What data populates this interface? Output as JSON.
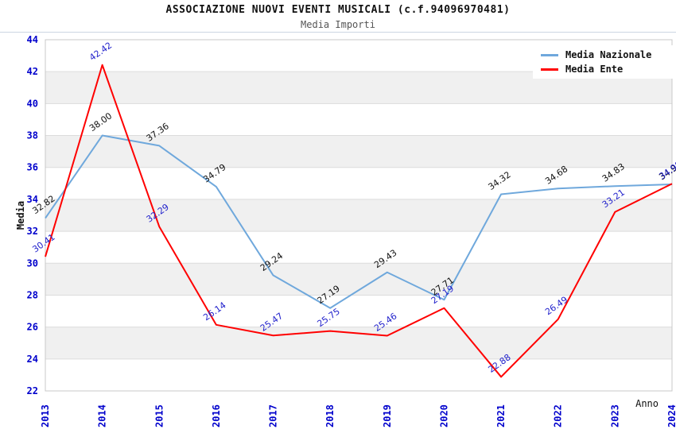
{
  "header": {
    "title": "ASSOCIAZIONE NUOVI EVENTI MUSICALI (c.f.94096970481)",
    "subtitle": "Media Importi"
  },
  "chart_data": {
    "type": "line",
    "title": "ASSOCIAZIONE NUOVI EVENTI MUSICALI (c.f.94096970481)",
    "subtitle": "Media Importi",
    "xlabel": "Anno",
    "ylabel": "Media",
    "x": [
      "2013",
      "2014",
      "2015",
      "2016",
      "2017",
      "2018",
      "2019",
      "2020",
      "2021",
      "2022",
      "2023",
      "2024"
    ],
    "series": [
      {
        "name": "Media Nazionale",
        "color": "#6FA8DC",
        "label_color": "#111111",
        "values": [
          32.82,
          38.0,
          37.36,
          34.79,
          29.24,
          27.19,
          29.43,
          27.71,
          34.32,
          34.68,
          34.83,
          34.94
        ]
      },
      {
        "name": "Media Ente",
        "color": "#FF0000",
        "label_color": "#2222CC",
        "values": [
          30.41,
          42.42,
          32.29,
          26.14,
          25.47,
          25.75,
          25.46,
          27.19,
          22.88,
          26.49,
          33.21,
          34.98
        ]
      }
    ],
    "ylim": [
      22,
      44
    ],
    "y_ticks": [
      22,
      24,
      26,
      28,
      30,
      32,
      34,
      36,
      38,
      40,
      42,
      44
    ],
    "grid": true,
    "bands": "alternating-gray-between-even-ticks",
    "legend_position": "top-right",
    "value_label_decimals": 2
  },
  "colors": {
    "tick_text": "#0000CC",
    "grid_line": "#DCDCDC",
    "band_fill": "#F0F0F0",
    "plot_border": "#C8C8C8",
    "axis_title": "#111111",
    "background": "#FFFFFF"
  }
}
